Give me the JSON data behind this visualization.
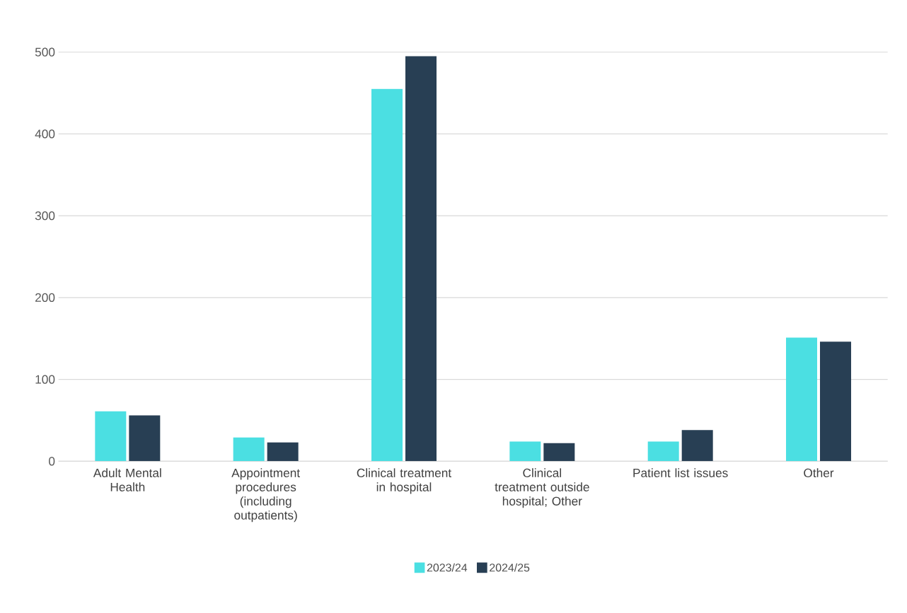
{
  "chart_data": {
    "type": "bar",
    "categories": [
      "Adult Mental Health",
      "Appointment procedures (including outpatients)",
      "Clinical treatment in hospital",
      "Clinical treatment outside hospital; Other",
      "Patient list issues",
      "Other"
    ],
    "series": [
      {
        "name": "2023/24",
        "color": "#4bdfe2",
        "values": [
          61,
          29,
          455,
          24,
          24,
          151
        ]
      },
      {
        "name": "2024/25",
        "color": "#283f54",
        "values": [
          56,
          23,
          495,
          22,
          38,
          146
        ]
      }
    ],
    "ylim": [
      0,
      500
    ],
    "yticks": [
      0,
      100,
      200,
      300,
      400,
      500
    ],
    "grid": "y",
    "legend": "bottom"
  }
}
